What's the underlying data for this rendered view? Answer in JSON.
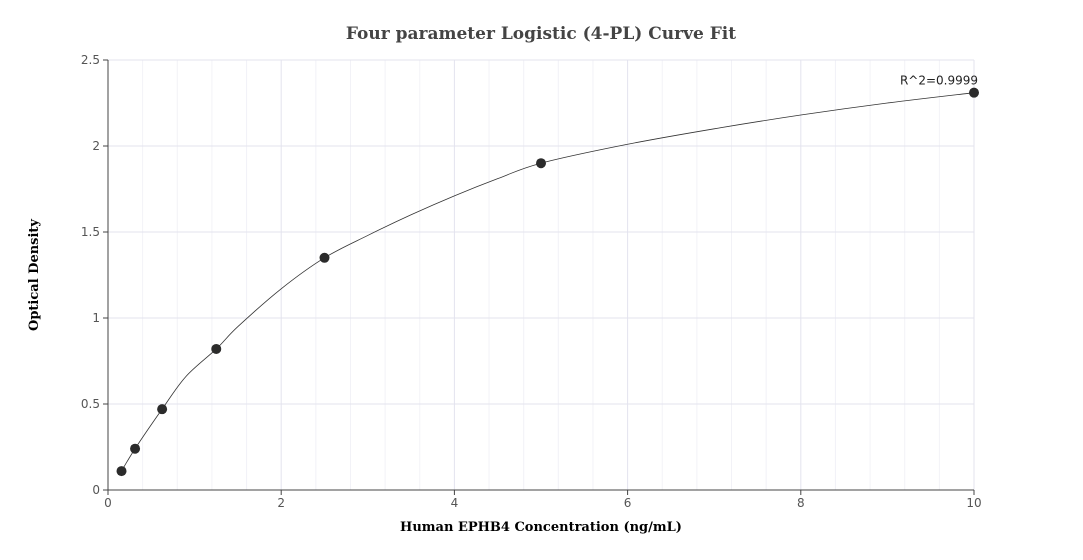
{
  "chart_data": {
    "type": "scatter",
    "title": "Four parameter Logistic (4-PL) Curve Fit",
    "xlabel": "Human EPHB4 Concentration (ng/mL)",
    "ylabel": "Optical Density",
    "xlim": [
      0,
      10
    ],
    "ylim": [
      0,
      2.5
    ],
    "x_ticks": [
      0,
      2,
      4,
      6,
      8,
      10
    ],
    "y_ticks": [
      0,
      0.5,
      1,
      1.5,
      2,
      2.5
    ],
    "x_tick_labels": [
      "0",
      "2",
      "4",
      "6",
      "8",
      "10"
    ],
    "y_tick_labels": [
      "0",
      "0.5",
      "1",
      "1.5",
      "2",
      "2.5"
    ],
    "grid": true,
    "legend": "none",
    "series": [
      {
        "x": [
          0.156,
          0.3125,
          0.625,
          1.25,
          2.5,
          5,
          10
        ],
        "y": [
          0.11,
          0.24,
          0.47,
          0.82,
          1.35,
          1.9,
          2.31
        ],
        "marker_color": "#2b2b2b",
        "curve_color": "#333333",
        "curve_points": [
          [
            0.156,
            0.11
          ],
          [
            0.3125,
            0.24
          ],
          [
            0.625,
            0.47
          ],
          [
            0.9,
            0.66
          ],
          [
            1.25,
            0.82
          ],
          [
            1.5,
            0.95
          ],
          [
            2,
            1.17
          ],
          [
            2.5,
            1.35
          ],
          [
            3,
            1.48
          ],
          [
            3.5,
            1.6
          ],
          [
            4,
            1.71
          ],
          [
            4.5,
            1.81
          ],
          [
            5,
            1.9
          ],
          [
            6,
            2.01
          ],
          [
            7,
            2.1
          ],
          [
            8,
            2.18
          ],
          [
            9,
            2.25
          ],
          [
            10,
            2.31
          ]
        ]
      }
    ],
    "annotations": [
      {
        "text": "R^2=0.9999",
        "x": 10,
        "y": 2.31
      }
    ]
  }
}
